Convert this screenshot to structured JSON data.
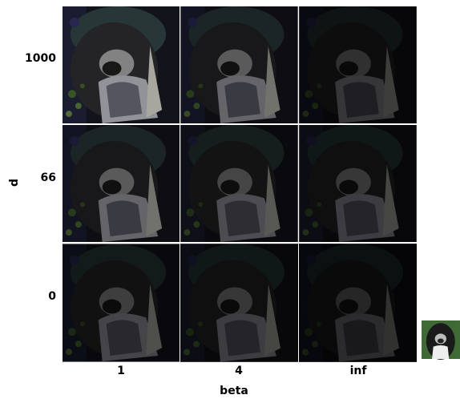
{
  "column_axis": {
    "label": "beta",
    "ticks": [
      "1",
      "4",
      "inf"
    ]
  },
  "row_axis": {
    "label": "d",
    "ticks": [
      "1000",
      "66",
      "0"
    ]
  }
}
